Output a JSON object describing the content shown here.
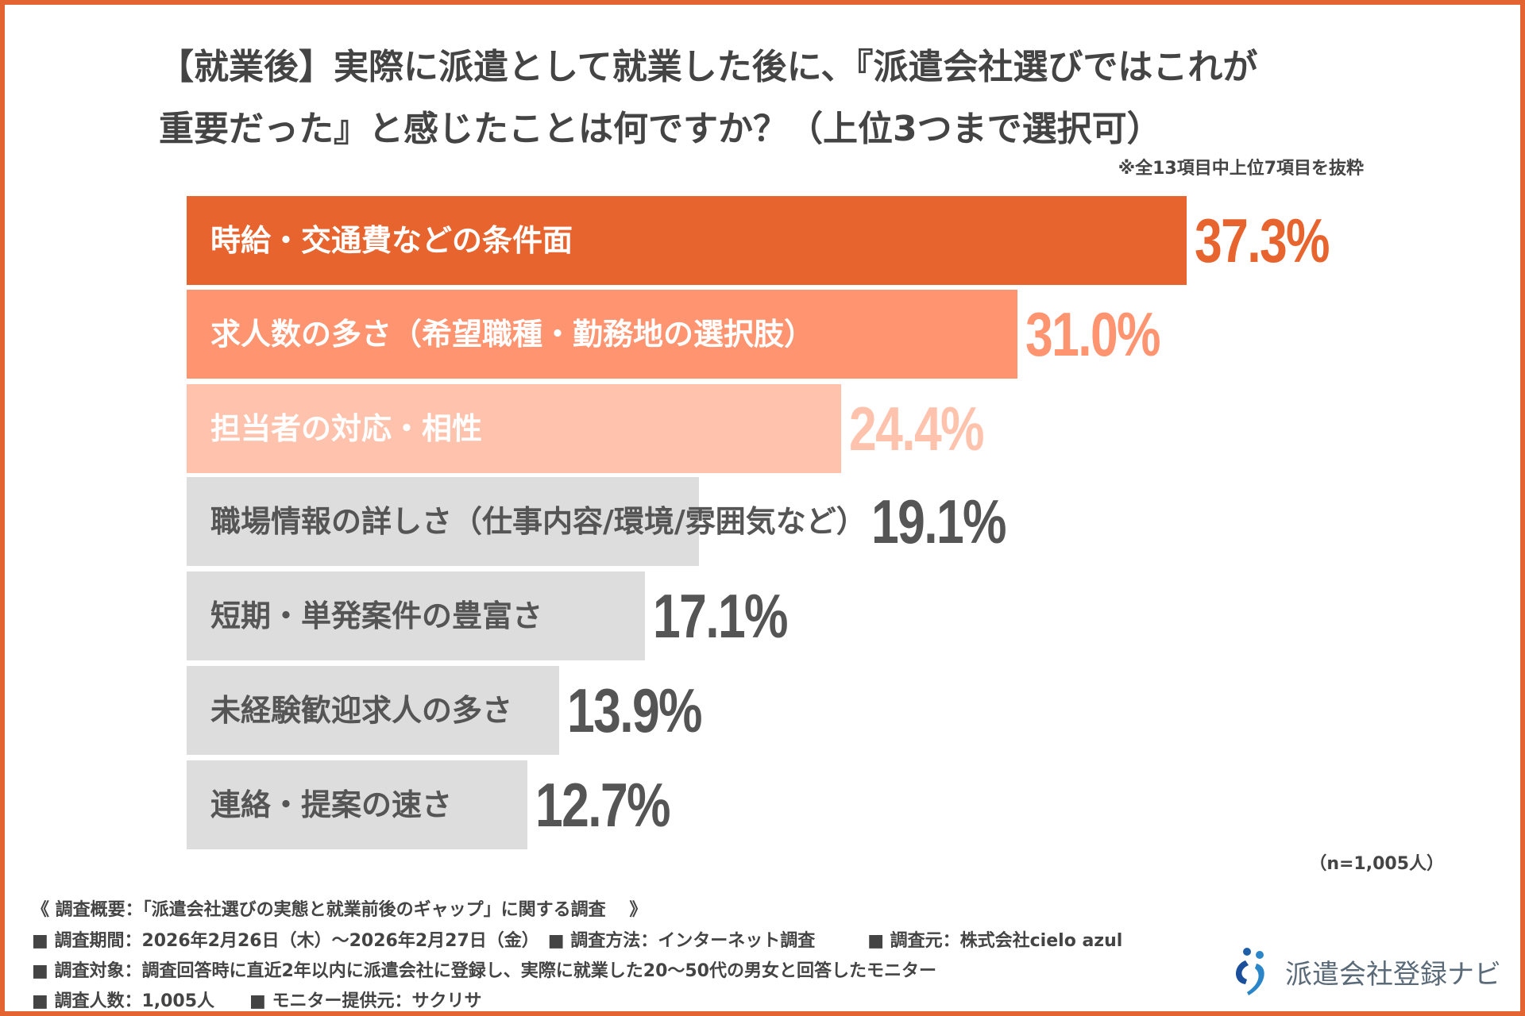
{
  "chart_data": {
    "type": "bar",
    "orientation": "horizontal",
    "title_line1": "【就業後】実際に派遣として就業した後に、『派遣会社選びではこれが",
    "title_line2": "重要だった』と感じたことは何ですか？（上位3つまで選択可）",
    "note": "※全13項目中上位7項目を抜粋",
    "categories": [
      "時給・交通費などの条件面",
      "求人数の多さ（希望職種・勤務地の選択肢）",
      "担当者の対応・相性",
      "職場情報の詳しさ（仕事内容/環境/雰囲気など）",
      "短期・単発案件の豊富さ",
      "未経験歓迎求人の多さ",
      "連絡・提案の速さ"
    ],
    "values": [
      37.3,
      31.0,
      24.4,
      19.1,
      17.1,
      13.9,
      12.7
    ],
    "value_labels": [
      "37.3%",
      "31.0%",
      "24.4%",
      "19.1%",
      "17.1%",
      "13.9%",
      "12.7%"
    ],
    "bar_colors": [
      "#E8642F",
      "#FF9470",
      "#FFC2AC",
      "#DDDDDD",
      "#DDDDDD",
      "#DDDDDD",
      "#DDDDDD"
    ],
    "label_colors": [
      "#FFFFFF",
      "#FFFFFF",
      "#FFFFFF",
      "#555555",
      "#555555",
      "#555555",
      "#555555"
    ],
    "value_colors": [
      "#E8642F",
      "#FF9470",
      "#FFC2AC",
      "#555555",
      "#555555",
      "#555555",
      "#555555"
    ],
    "sample": "（n=1,005人）"
  },
  "footer": {
    "heading": "《 調査概要：「派遣会社選びの実態と就業前後のギャップ」に関する調査　 》",
    "line1": "■ 調査期間：2026年2月26日（木）～2026年2月27日（金）　■ 調査方法：インターネット調査　　　■ 調査元：株式会社cielo azul",
    "line2": "■ 調査対象：調査回答時に直近2年以内に派遣会社に登録し、実際に就業した20～50代の男女と回答したモニター",
    "line3": "■ 調査人数：1,005人　　■ モニター提供元：サクリサ"
  },
  "logo": {
    "text": "派遣会社登録ナビ",
    "icon": "people-logo-icon"
  },
  "colors": {
    "frame": "#E46431"
  }
}
